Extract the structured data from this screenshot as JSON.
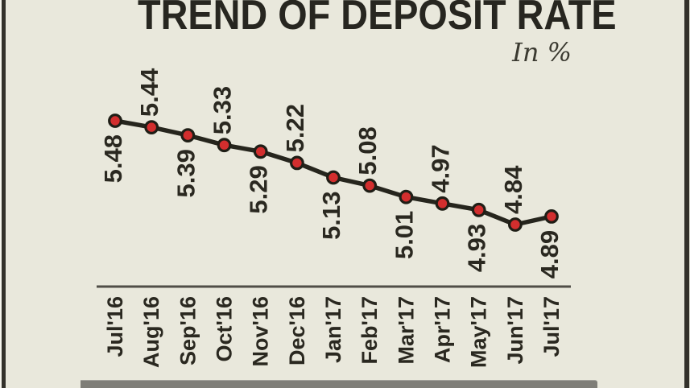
{
  "panel": {
    "background": "#e9e8dc",
    "border_color": "#33312b",
    "bottom_bar_color": "#7f7e78"
  },
  "header": {
    "title": "TREND OF DEPOSIT RATE",
    "subtitle": "In %"
  },
  "chart_data": {
    "type": "line",
    "title": "TREND OF DEPOSIT RATE",
    "unit_label": "In %",
    "categories": [
      "Jul'16",
      "Aug'16",
      "Sep'16",
      "Oct'16",
      "Nov'16",
      "Dec'16",
      "Jan'17",
      "Feb'17",
      "Mar'17",
      "Apr'17",
      "May'17",
      "Jun'17",
      "Jul'17"
    ],
    "values": [
      5.48,
      5.44,
      5.39,
      5.33,
      5.29,
      5.22,
      5.13,
      5.08,
      5.01,
      4.97,
      4.93,
      4.84,
      4.89
    ],
    "data_labels": [
      "5.48",
      "5.44",
      "5.39",
      "5.33",
      "5.29",
      "5.22",
      "5.13",
      "5.08",
      "5.01",
      "4.97",
      "4.93",
      "4.84",
      "4.89"
    ],
    "ylim": [
      4.7,
      5.6
    ],
    "gridlines": false,
    "y_axis_visible": false,
    "x_axis_visible": true,
    "legend": "none",
    "line_color": "#26251d",
    "marker_color": "#d22e2e",
    "marker_ring_color": "#1f1e16",
    "label_color": "#2a2820",
    "axis_color": "#504e47"
  }
}
